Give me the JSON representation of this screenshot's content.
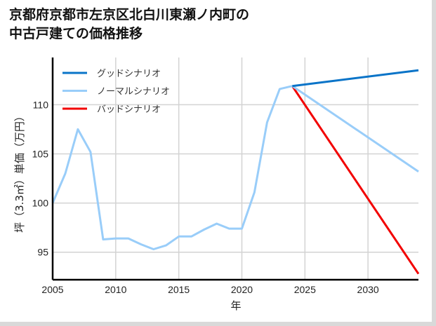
{
  "title": {
    "line1": "京都府京都市左京区北白川東瀬ノ内町の",
    "line2": "中古戸建ての価格推移"
  },
  "axes": {
    "xlabel": "年",
    "ylabel": "坪（3.3㎡）単価（万円）"
  },
  "legend": {
    "items": [
      {
        "label": "グッドシナリオ",
        "color": "#0a74c8"
      },
      {
        "label": "ノーマルシナリオ",
        "color": "#99cdf9"
      },
      {
        "label": "バッドシナリオ",
        "color": "#f20000"
      }
    ]
  },
  "chart_data": {
    "type": "line",
    "title": "京都府京都市左京区北白川東瀬ノ内町の中古戸建ての価格推移",
    "xlabel": "年",
    "ylabel": "坪（3.3㎡）単価（万円）",
    "xlim": [
      2005,
      2034
    ],
    "ylim": [
      92.2,
      114.8
    ],
    "xticks": [
      2005,
      2010,
      2015,
      2020,
      2025,
      2030
    ],
    "yticks": [
      95,
      100,
      105,
      110
    ],
    "grid": true,
    "legend_position": "upper left",
    "series": [
      {
        "name": "ノーマルシナリオ (historical)",
        "color": "#99cdf9",
        "x": [
          2005,
          2006,
          2007,
          2008,
          2009,
          2010,
          2011,
          2012,
          2013,
          2014,
          2015,
          2016,
          2017,
          2018,
          2019,
          2020,
          2021,
          2022,
          2023,
          2024
        ],
        "values": [
          100.0,
          103.0,
          107.5,
          105.2,
          96.3,
          96.4,
          96.4,
          95.8,
          95.3,
          95.7,
          96.6,
          96.6,
          97.3,
          97.9,
          97.4,
          97.4,
          101.1,
          108.2,
          111.6,
          111.9
        ]
      },
      {
        "name": "グッドシナリオ",
        "color": "#0a74c8",
        "x": [
          2024,
          2034
        ],
        "values": [
          111.9,
          113.5
        ]
      },
      {
        "name": "ノーマルシナリオ",
        "color": "#99cdf9",
        "x": [
          2024,
          2034
        ],
        "values": [
          111.9,
          103.2
        ]
      },
      {
        "name": "バッドシナリオ",
        "color": "#f20000",
        "x": [
          2024,
          2034
        ],
        "values": [
          111.9,
          92.8
        ]
      }
    ]
  }
}
